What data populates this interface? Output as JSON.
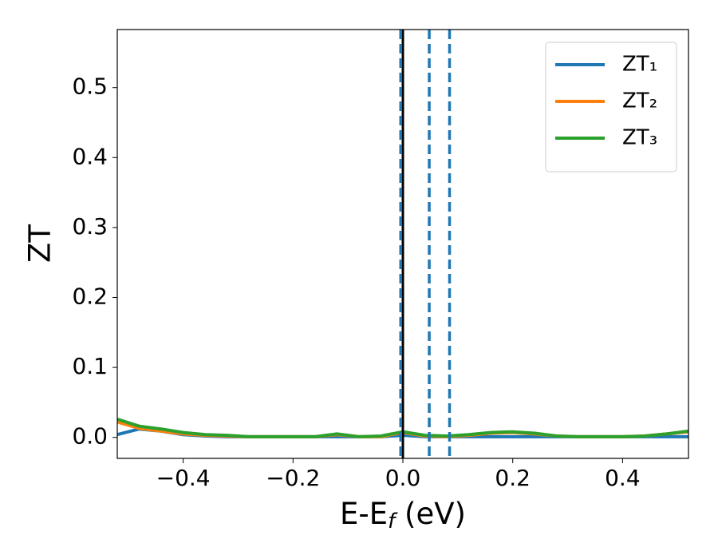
{
  "chart_data": {
    "type": "line",
    "xlabel": [
      "E-E",
      "f",
      " (eV)"
    ],
    "ylabel": "ZT",
    "x": [
      -0.52,
      -0.48,
      -0.44,
      -0.4,
      -0.36,
      -0.32,
      -0.28,
      -0.24,
      -0.2,
      -0.16,
      -0.12,
      -0.08,
      -0.04,
      0.0,
      0.04,
      0.08,
      0.12,
      0.16,
      0.2,
      0.24,
      0.28,
      0.32,
      0.36,
      0.4,
      0.44,
      0.48,
      0.52
    ],
    "series": [
      {
        "name": "ZT₁",
        "color": "#1f77b4",
        "values": [
          0.004,
          0.012,
          0.009,
          0.004,
          0.002,
          0.001,
          0.001,
          0.001,
          0.001,
          0.001,
          0.001,
          0.001,
          0.001,
          0.003,
          0.001,
          0.001,
          0.001,
          0.001,
          0.001,
          0.001,
          0.001,
          0.001,
          0.001,
          0.001,
          0.001,
          0.001,
          0.001
        ]
      },
      {
        "name": "ZT₂",
        "color": "#ff7f0e",
        "values": [
          0.022,
          0.013,
          0.009,
          0.005,
          0.003,
          0.002,
          0.001,
          0.001,
          0.001,
          0.001,
          0.004,
          0.001,
          0.001,
          0.007,
          0.002,
          0.001,
          0.003,
          0.006,
          0.007,
          0.005,
          0.002,
          0.001,
          0.001,
          0.001,
          0.002,
          0.005,
          0.008
        ]
      },
      {
        "name": "ZT₃",
        "color": "#2ca02c",
        "values": [
          0.026,
          0.016,
          0.012,
          0.007,
          0.004,
          0.003,
          0.001,
          0.001,
          0.001,
          0.001,
          0.005,
          0.001,
          0.002,
          0.008,
          0.003,
          0.002,
          0.004,
          0.007,
          0.008,
          0.006,
          0.002,
          0.001,
          0.001,
          0.001,
          0.002,
          0.005,
          0.009
        ]
      }
    ],
    "vlines": [
      {
        "x": 0,
        "color": "#000000",
        "style": "solid"
      },
      {
        "x": -0.004,
        "color": "#1f77b4",
        "style": "dashed"
      },
      {
        "x": 0.048,
        "color": "#1f77b4",
        "style": "dashed"
      },
      {
        "x": 0.085,
        "color": "#1f77b4",
        "style": "dashed"
      }
    ],
    "xlim": [
      -0.52,
      0.52
    ],
    "ylim": [
      -0.03,
      0.583
    ],
    "xticks": [
      {
        "value": -0.4,
        "label": "−0.4"
      },
      {
        "value": -0.2,
        "label": "−0.2"
      },
      {
        "value": 0,
        "label": "0.0"
      },
      0.2,
      0.4
    ],
    "yticks": [
      {
        "value": 0,
        "label": "0.0"
      },
      0.1,
      0.2,
      0.3,
      0.4,
      0.5
    ],
    "legend": "upper right",
    "grid": false
  }
}
